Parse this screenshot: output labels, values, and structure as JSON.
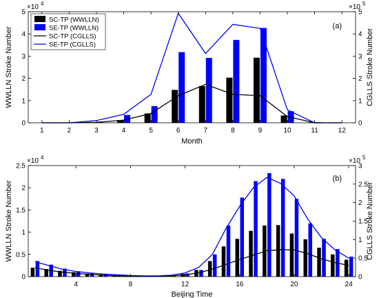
{
  "chart_data": [
    {
      "type": "bar",
      "panel_label": "(a)",
      "xlabel": "Month",
      "ylabel_left": "WWLLN Stroke Number",
      "ylabel_right": "CGLLS Stroke Number",
      "left_multiplier": "×10",
      "left_exponent": "4",
      "right_multiplier": "×10",
      "right_exponent": "5",
      "x": [
        1,
        2,
        3,
        4,
        5,
        6,
        7,
        8,
        9,
        10,
        11,
        12
      ],
      "xticks": [
        "1",
        "2",
        "3",
        "4",
        "5",
        "6",
        "7",
        "8",
        "9",
        "10",
        "11",
        "12"
      ],
      "xlim": [
        0.5,
        12.5
      ],
      "ylim_left": [
        0,
        5
      ],
      "ylim_right": [
        0,
        5
      ],
      "yticks_left": [
        "0",
        "1",
        "2",
        "3",
        "4",
        "5"
      ],
      "yticks_right": [
        "0",
        "1",
        "2",
        "3",
        "4",
        "5"
      ],
      "legend_position": "top-left",
      "series": [
        {
          "name": "SC-TP (WWLLN)",
          "kind": "bar",
          "color": "#000000",
          "values": [
            0.0,
            0.0,
            0.03,
            0.12,
            0.42,
            1.48,
            1.65,
            2.03,
            2.93,
            0.33,
            0.02,
            0.0
          ]
        },
        {
          "name": "SE-TP (WWLLN)",
          "kind": "bar",
          "color": "#0000ff",
          "values": [
            0.0,
            0.0,
            0.05,
            0.35,
            0.75,
            3.18,
            2.92,
            3.73,
            4.27,
            0.52,
            0.03,
            0.0
          ]
        },
        {
          "name": "SC-TP (CGLLS)",
          "kind": "line",
          "color": "#000000",
          "values": [
            0.0,
            0.0,
            0.02,
            0.12,
            0.42,
            1.22,
            1.73,
            1.28,
            1.22,
            0.28,
            0.0,
            0.0
          ]
        },
        {
          "name": "SE-TP (CGLLS)",
          "kind": "line",
          "color": "#0000ff",
          "values": [
            0.0,
            0.0,
            0.1,
            0.38,
            1.28,
            4.93,
            3.12,
            4.43,
            4.25,
            0.58,
            0.0,
            0.0
          ]
        }
      ]
    },
    {
      "type": "bar",
      "panel_label": "(b)",
      "xlabel": "Beijing Time",
      "ylabel_left": "WWLLN Stroke Number",
      "ylabel_right": "CGLLS Stroke Number",
      "left_multiplier": "×10",
      "left_exponent": "4",
      "right_multiplier": "×10",
      "right_exponent": "5",
      "x": [
        1,
        2,
        3,
        4,
        5,
        6,
        7,
        8,
        9,
        10,
        11,
        12,
        13,
        14,
        15,
        16,
        17,
        18,
        19,
        20,
        21,
        22,
        23,
        24
      ],
      "xticks": [
        "4",
        "8",
        "12",
        "16",
        "20",
        "24"
      ],
      "xtick_values": [
        4,
        8,
        12,
        16,
        20,
        24
      ],
      "xlim": [
        0.5,
        24.5
      ],
      "ylim_left": [
        0,
        2.5
      ],
      "ylim_right": [
        0,
        3
      ],
      "yticks_left": [
        "0",
        "0.5",
        "1",
        "1.5",
        "2",
        "2.5"
      ],
      "yticks_left_values": [
        0,
        0.5,
        1,
        1.5,
        2,
        2.5
      ],
      "yticks_right": [
        "0",
        "0.5",
        "1",
        "1.5",
        "2",
        "2.5",
        "3"
      ],
      "yticks_right_values": [
        0,
        0.5,
        1,
        1.5,
        2,
        2.5,
        3
      ],
      "series": [
        {
          "name": "SC-TP (WWLLN)",
          "kind": "bar",
          "color": "#000000",
          "values": [
            0.2,
            0.17,
            0.13,
            0.1,
            0.07,
            0.05,
            0.03,
            0.02,
            0.01,
            0.01,
            0.02,
            0.06,
            0.15,
            0.35,
            0.68,
            0.85,
            1.03,
            1.15,
            1.16,
            0.97,
            0.84,
            0.65,
            0.5,
            0.38
          ]
        },
        {
          "name": "SE-TP (WWLLN)",
          "kind": "bar",
          "color": "#0000ff",
          "values": [
            0.35,
            0.27,
            0.18,
            0.12,
            0.08,
            0.05,
            0.03,
            0.02,
            0.01,
            0.01,
            0.03,
            0.07,
            0.15,
            0.5,
            1.15,
            1.78,
            2.15,
            2.33,
            2.2,
            1.75,
            1.2,
            0.85,
            0.62,
            0.45
          ]
        },
        {
          "name": "SC-TP (CGLLS)",
          "kind": "line",
          "color": "#000000",
          "values": [
            0.24,
            0.17,
            0.12,
            0.09,
            0.06,
            0.04,
            0.02,
            0.01,
            0.01,
            0.01,
            0.02,
            0.05,
            0.1,
            0.2,
            0.33,
            0.46,
            0.58,
            0.7,
            0.73,
            0.72,
            0.62,
            0.48,
            0.38,
            0.3
          ]
        },
        {
          "name": "SE-TP (CGLLS)",
          "kind": "line",
          "color": "#0000ff",
          "values": [
            0.4,
            0.3,
            0.2,
            0.14,
            0.1,
            0.07,
            0.05,
            0.03,
            0.02,
            0.02,
            0.04,
            0.1,
            0.25,
            0.6,
            1.3,
            1.9,
            2.4,
            2.68,
            2.52,
            2.18,
            1.55,
            1.05,
            0.72,
            0.5
          ]
        }
      ]
    }
  ]
}
